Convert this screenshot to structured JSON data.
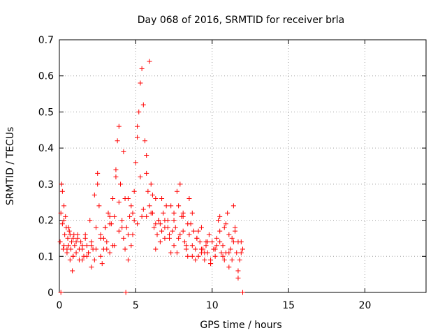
{
  "chart_data": {
    "type": "scatter",
    "title": "Day 068 of 2016, SRMTID for receiver brla",
    "xlabel": "GPS time / hours",
    "ylabel": "SRMTID / TECUs",
    "xlim": [
      0,
      24
    ],
    "ylim": [
      0,
      0.7
    ],
    "xticks": [
      0,
      5,
      10,
      15,
      20
    ],
    "yticks": [
      0,
      0.1,
      0.2,
      0.3,
      0.4,
      0.5,
      0.6,
      0.7
    ],
    "xtick_labels": [
      "0",
      "5",
      "10",
      "15",
      "20"
    ],
    "ytick_labels": [
      "0",
      "0.1",
      "0.2",
      "0.3",
      "0.4",
      "0.5",
      "0.6",
      "0.7"
    ],
    "grid": true,
    "marker": "+",
    "series": [
      {
        "name": "SRMTID",
        "color": "#ff0000",
        "x": [
          0.05,
          0.1,
          0.15,
          0.2,
          0.25,
          0.3,
          0.35,
          0.4,
          0.45,
          0.5,
          0.55,
          0.6,
          0.65,
          0.7,
          0.75,
          0.8,
          0.85,
          0.9,
          0.95,
          1.0,
          1.1,
          1.2,
          1.3,
          1.4,
          1.5,
          1.6,
          1.7,
          1.8,
          1.9,
          2.0,
          2.1,
          2.2,
          2.3,
          2.4,
          2.5,
          2.6,
          2.7,
          2.8,
          2.9,
          3.0,
          3.1,
          3.2,
          3.3,
          3.4,
          3.5,
          3.6,
          3.7,
          3.8,
          3.9,
          4.0,
          4.1,
          4.2,
          4.3,
          4.4,
          4.5,
          4.6,
          4.7,
          4.8,
          4.9,
          5.0,
          5.1,
          5.2,
          5.3,
          5.4,
          5.5,
          5.6,
          5.7,
          5.8,
          5.9,
          6.0,
          6.1,
          6.2,
          6.3,
          6.4,
          6.5,
          6.6,
          6.7,
          6.8,
          6.9,
          7.0,
          7.1,
          7.2,
          7.3,
          7.4,
          7.5,
          7.6,
          7.7,
          7.8,
          7.9,
          8.0,
          8.1,
          8.2,
          8.3,
          8.4,
          8.5,
          8.6,
          8.7,
          8.8,
          8.9,
          9.0,
          9.1,
          9.2,
          9.3,
          9.4,
          9.5,
          9.6,
          9.7,
          9.8,
          9.9,
          10.0,
          10.1,
          10.2,
          10.3,
          10.4,
          10.5,
          10.6,
          10.7,
          10.8,
          10.9,
          11.0,
          11.1,
          11.2,
          11.3,
          11.4,
          11.5,
          11.6,
          11.7,
          11.8,
          11.9,
          12.0,
          0.2,
          0.3,
          0.5,
          0.7,
          0.9,
          1.1,
          1.3,
          1.5,
          1.7,
          1.9,
          2.1,
          2.3,
          2.5,
          2.7,
          2.9,
          3.1,
          3.3,
          3.5,
          3.7,
          3.9,
          4.1,
          4.3,
          4.5,
          4.7,
          4.9,
          5.1,
          5.3,
          5.5,
          5.7,
          5.9,
          6.1,
          6.3,
          6.5,
          6.7,
          6.9,
          7.1,
          7.3,
          7.5,
          7.7,
          7.9,
          8.1,
          8.3,
          8.5,
          8.7,
          8.9,
          9.1,
          9.3,
          9.5,
          9.7,
          9.9,
          10.1,
          10.3,
          10.5,
          10.7,
          10.9,
          11.1,
          11.3,
          11.5,
          11.7,
          11.9,
          0.3,
          0.6,
          0.9,
          1.2,
          1.5,
          1.8,
          2.1,
          2.4,
          2.7,
          3.0,
          3.3,
          3.6,
          3.9,
          4.2,
          4.5,
          4.8,
          5.1,
          5.4,
          5.7,
          6.0,
          6.3,
          6.6,
          6.9,
          7.2,
          7.5,
          7.8,
          8.1,
          8.4,
          8.7,
          9.0,
          9.3,
          9.6,
          9.9,
          10.2,
          10.5,
          10.8,
          11.1,
          11.4,
          11.7,
          0.1,
          4.35,
          12.0
        ],
        "y": [
          0.14,
          0.22,
          0.3,
          0.19,
          0.12,
          0.24,
          0.16,
          0.21,
          0.18,
          0.11,
          0.15,
          0.13,
          0.17,
          0.09,
          0.12,
          0.14,
          0.06,
          0.1,
          0.16,
          0.13,
          0.11,
          0.15,
          0.09,
          0.14,
          0.12,
          0.1,
          0.16,
          0.13,
          0.11,
          0.2,
          0.14,
          0.12,
          0.09,
          0.18,
          0.33,
          0.24,
          0.16,
          0.08,
          0.12,
          0.18,
          0.14,
          0.22,
          0.11,
          0.19,
          0.26,
          0.21,
          0.34,
          0.42,
          0.46,
          0.3,
          0.2,
          0.15,
          0.12,
          0.18,
          0.26,
          0.21,
          0.24,
          0.16,
          0.28,
          0.36,
          0.43,
          0.5,
          0.58,
          0.62,
          0.52,
          0.42,
          0.33,
          0.28,
          0.24,
          0.3,
          0.22,
          0.18,
          0.12,
          0.16,
          0.2,
          0.19,
          0.26,
          0.22,
          0.18,
          0.24,
          0.2,
          0.15,
          0.11,
          0.17,
          0.22,
          0.18,
          0.28,
          0.24,
          0.3,
          0.21,
          0.17,
          0.14,
          0.12,
          0.1,
          0.16,
          0.19,
          0.13,
          0.17,
          0.12,
          0.15,
          0.1,
          0.14,
          0.18,
          0.12,
          0.09,
          0.13,
          0.11,
          0.16,
          0.08,
          0.14,
          0.12,
          0.1,
          0.15,
          0.2,
          0.17,
          0.11,
          0.13,
          0.09,
          0.19,
          0.22,
          0.16,
          0.12,
          0.15,
          0.24,
          0.18,
          0.11,
          0.06,
          0.09,
          0.14,
          0.12,
          0.28,
          0.2,
          0.12,
          0.16,
          0.1,
          0.14,
          0.12,
          0.09,
          0.15,
          0.11,
          0.13,
          0.27,
          0.3,
          0.1,
          0.15,
          0.12,
          0.19,
          0.13,
          0.32,
          0.25,
          0.18,
          0.26,
          0.09,
          0.13,
          0.2,
          0.46,
          0.32,
          0.23,
          0.21,
          0.64,
          0.27,
          0.26,
          0.2,
          0.17,
          0.15,
          0.18,
          0.24,
          0.13,
          0.11,
          0.16,
          0.22,
          0.13,
          0.26,
          0.22,
          0.09,
          0.17,
          0.12,
          0.11,
          0.14,
          0.08,
          0.12,
          0.13,
          0.21,
          0.1,
          0.11,
          0.07,
          0.09,
          0.17,
          0.14,
          0.11,
          0.13,
          0.18,
          0.15,
          0.16,
          0.13,
          0.1,
          0.07,
          0.12,
          0.15,
          0.18,
          0.21,
          0.13,
          0.17,
          0.39,
          0.16,
          0.22,
          0.19,
          0.21,
          0.38,
          0.22,
          0.19,
          0.14,
          0.2,
          0.16,
          0.2,
          0.15,
          0.21,
          0.19,
          0.1,
          0.15,
          0.11,
          0.14,
          0.09,
          0.12,
          0.14,
          0.18,
          0.11,
          0.14,
          0.04,
          0.0,
          0.0,
          0.0
        ]
      }
    ]
  }
}
